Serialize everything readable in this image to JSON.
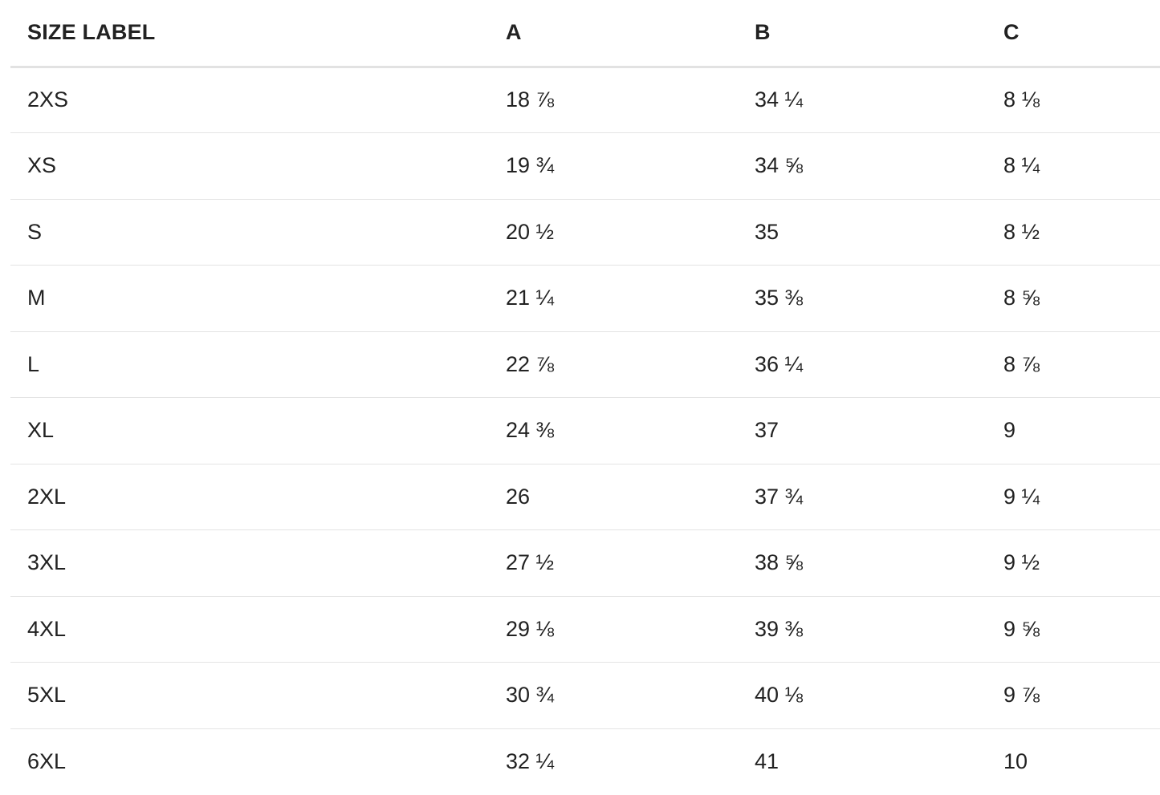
{
  "headers": [
    "SIZE LABEL",
    "A",
    "B",
    "C"
  ],
  "rows": [
    [
      "2XS",
      "18 ⅞",
      "34 ¼",
      "8 ⅛"
    ],
    [
      "XS",
      "19 ¾",
      "34 ⅝",
      "8 ¼"
    ],
    [
      "S",
      "20 ½",
      "35",
      "8 ½"
    ],
    [
      "M",
      "21 ¼",
      "35 ⅜",
      "8 ⅝"
    ],
    [
      "L",
      "22 ⅞",
      "36 ¼",
      "8 ⅞"
    ],
    [
      "XL",
      "24 ⅜",
      "37",
      "9"
    ],
    [
      "2XL",
      "26",
      "37 ¾",
      "9 ¼"
    ],
    [
      "3XL",
      "27 ½",
      "38 ⅝",
      "9 ½"
    ],
    [
      "4XL",
      "29 ⅛",
      "39 ⅜",
      "9 ⅝"
    ],
    [
      "5XL",
      "30 ¾",
      "40 ⅛",
      "9 ⅞"
    ],
    [
      "6XL",
      "32 ¼",
      "41",
      "10"
    ]
  ]
}
